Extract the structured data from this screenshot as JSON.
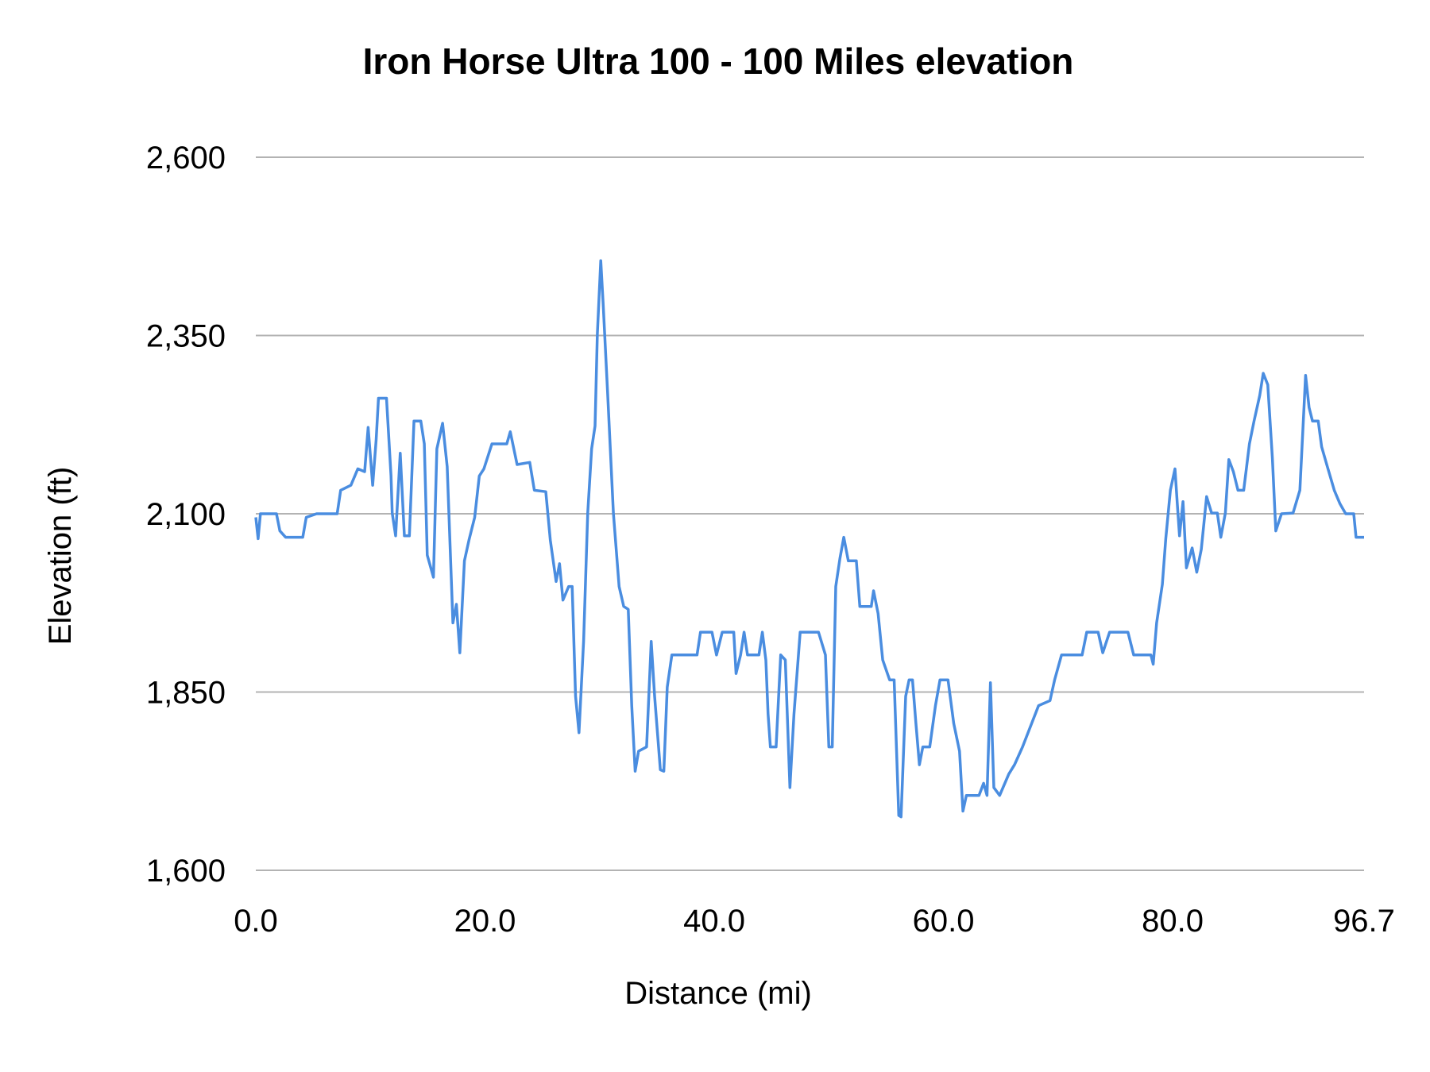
{
  "chart_data": {
    "type": "line",
    "title": "Iron Horse Ultra 100 - 100 Miles elevation",
    "xlabel": "Distance (mi)",
    "ylabel": "Elevation (ft)",
    "xlim": [
      0,
      96.7
    ],
    "ylim": [
      1600,
      2600
    ],
    "x_ticks": [
      "0.0",
      "20.0",
      "40.0",
      "60.0",
      "80.0",
      "96.7"
    ],
    "x_tick_values": [
      0,
      20,
      40,
      60,
      80,
      96.7
    ],
    "y_ticks": [
      "2,600",
      "2,350",
      "2,100",
      "1,850",
      "1,600"
    ],
    "y_tick_values": [
      2600,
      2350,
      2100,
      1850,
      1600
    ],
    "grid": "horizontal",
    "legend": "none",
    "line_color": "#4a8de0",
    "grid_color": "#b3b3b3",
    "series": [
      {
        "points": [
          [
            0,
            2095
          ],
          [
            0.2,
            2065
          ],
          [
            0.4,
            2100
          ],
          [
            1.8,
            2100
          ],
          [
            2.1,
            2076
          ],
          [
            2.6,
            2067
          ],
          [
            4.1,
            2067
          ],
          [
            4.4,
            2095
          ],
          [
            5.3,
            2100
          ],
          [
            7.1,
            2100
          ],
          [
            7.4,
            2133
          ],
          [
            8.3,
            2140
          ],
          [
            8.9,
            2163
          ],
          [
            9.5,
            2159
          ],
          [
            9.8,
            2221
          ],
          [
            10.2,
            2140
          ],
          [
            10.5,
            2204
          ],
          [
            10.7,
            2262
          ],
          [
            11.4,
            2262
          ],
          [
            11.8,
            2153
          ],
          [
            11.9,
            2101
          ],
          [
            12.2,
            2069
          ],
          [
            12.6,
            2185
          ],
          [
            12.96,
            2069
          ],
          [
            13.4,
            2069
          ],
          [
            13.8,
            2230
          ],
          [
            14.4,
            2230
          ],
          [
            14.7,
            2198
          ],
          [
            14.96,
            2042
          ],
          [
            15.5,
            2011
          ],
          [
            15.8,
            2191
          ],
          [
            16.3,
            2227
          ],
          [
            16.7,
            2166
          ],
          [
            17.2,
            1947
          ],
          [
            17.5,
            1973
          ],
          [
            17.8,
            1905
          ],
          [
            18.2,
            2034
          ],
          [
            18.6,
            2063
          ],
          [
            19.1,
            2095
          ],
          [
            19.5,
            2153
          ],
          [
            19.9,
            2163
          ],
          [
            20.6,
            2198
          ],
          [
            21.9,
            2198
          ],
          [
            22.2,
            2215
          ],
          [
            22.8,
            2169
          ],
          [
            23.9,
            2172
          ],
          [
            24.3,
            2133
          ],
          [
            25.3,
            2131
          ],
          [
            25.7,
            2063
          ],
          [
            26.2,
            2005
          ],
          [
            26.5,
            2030
          ],
          [
            26.8,
            1979
          ],
          [
            27.3,
            1998
          ],
          [
            27.6,
            1998
          ],
          [
            27.9,
            1844
          ],
          [
            28.2,
            1793
          ],
          [
            28.6,
            1921
          ],
          [
            28.96,
            2101
          ],
          [
            29.3,
            2191
          ],
          [
            29.6,
            2223
          ],
          [
            29.8,
            2352
          ],
          [
            30.1,
            2455
          ],
          [
            30.3,
            2397
          ],
          [
            30.7,
            2268
          ],
          [
            31.2,
            2101
          ],
          [
            31.7,
            1998
          ],
          [
            32.1,
            1970
          ],
          [
            32.5,
            1966
          ],
          [
            32.8,
            1831
          ],
          [
            33.1,
            1739
          ],
          [
            33.4,
            1767
          ],
          [
            34.1,
            1773
          ],
          [
            34.5,
            1921
          ],
          [
            34.8,
            1844
          ],
          [
            35.3,
            1741
          ],
          [
            35.6,
            1739
          ],
          [
            35.9,
            1857
          ],
          [
            36.3,
            1902
          ],
          [
            38.5,
            1902
          ],
          [
            38.8,
            1934
          ],
          [
            39.8,
            1934
          ],
          [
            40.2,
            1902
          ],
          [
            40.7,
            1934
          ],
          [
            41.7,
            1934
          ],
          [
            41.9,
            1876
          ],
          [
            42.3,
            1902
          ],
          [
            42.6,
            1934
          ],
          [
            42.9,
            1902
          ],
          [
            43.9,
            1902
          ],
          [
            44.2,
            1934
          ],
          [
            44.5,
            1895
          ],
          [
            44.7,
            1819
          ],
          [
            44.9,
            1773
          ],
          [
            45.4,
            1773
          ],
          [
            45.8,
            1902
          ],
          [
            46.2,
            1895
          ],
          [
            46.6,
            1716
          ],
          [
            46.96,
            1819
          ],
          [
            47.5,
            1934
          ],
          [
            49.1,
            1934
          ],
          [
            49.7,
            1902
          ],
          [
            50.0,
            1773
          ],
          [
            50.3,
            1773
          ],
          [
            50.6,
            1998
          ],
          [
            50.96,
            2037
          ],
          [
            51.3,
            2067
          ],
          [
            51.7,
            2034
          ],
          [
            52.4,
            2034
          ],
          [
            52.7,
            1970
          ],
          [
            53.7,
            1970
          ],
          [
            53.9,
            1992
          ],
          [
            54.3,
            1960
          ],
          [
            54.7,
            1895
          ],
          [
            55.3,
            1867
          ],
          [
            55.7,
            1867
          ],
          [
            56.1,
            1677
          ],
          [
            56.3,
            1675
          ],
          [
            56.7,
            1844
          ],
          [
            57.0,
            1867
          ],
          [
            57.3,
            1867
          ],
          [
            57.6,
            1806
          ],
          [
            57.9,
            1748
          ],
          [
            58.2,
            1773
          ],
          [
            58.8,
            1773
          ],
          [
            59.3,
            1831
          ],
          [
            59.7,
            1867
          ],
          [
            60.4,
            1867
          ],
          [
            60.9,
            1806
          ],
          [
            61.4,
            1767
          ],
          [
            61.7,
            1683
          ],
          [
            62.0,
            1705
          ],
          [
            63.1,
            1705
          ],
          [
            63.5,
            1722
          ],
          [
            63.8,
            1705
          ],
          [
            64.1,
            1863
          ],
          [
            64.4,
            1716
          ],
          [
            64.9,
            1705
          ],
          [
            65.7,
            1735
          ],
          [
            66.2,
            1748
          ],
          [
            66.9,
            1773
          ],
          [
            67.7,
            1806
          ],
          [
            68.3,
            1831
          ],
          [
            69.3,
            1838
          ],
          [
            69.7,
            1867
          ],
          [
            70.3,
            1902
          ],
          [
            72.1,
            1902
          ],
          [
            72.5,
            1934
          ],
          [
            73.5,
            1934
          ],
          [
            73.9,
            1905
          ],
          [
            74.5,
            1934
          ],
          [
            76.1,
            1934
          ],
          [
            76.6,
            1902
          ],
          [
            78.1,
            1902
          ],
          [
            78.3,
            1889
          ],
          [
            78.6,
            1947
          ],
          [
            79.1,
            2001
          ],
          [
            79.4,
            2065
          ],
          [
            79.8,
            2133
          ],
          [
            80.2,
            2163
          ],
          [
            80.4,
            2114
          ],
          [
            80.6,
            2069
          ],
          [
            80.9,
            2117
          ],
          [
            81.2,
            2024
          ],
          [
            81.7,
            2052
          ],
          [
            82.1,
            2018
          ],
          [
            82.5,
            2050
          ],
          [
            82.96,
            2124
          ],
          [
            83.4,
            2101
          ],
          [
            83.9,
            2101
          ],
          [
            84.2,
            2067
          ],
          [
            84.6,
            2101
          ],
          [
            84.9,
            2176
          ],
          [
            85.3,
            2159
          ],
          [
            85.7,
            2133
          ],
          [
            86.2,
            2133
          ],
          [
            86.7,
            2198
          ],
          [
            87.1,
            2230
          ],
          [
            87.6,
            2266
          ],
          [
            87.9,
            2297
          ],
          [
            88.3,
            2281
          ],
          [
            88.7,
            2178
          ],
          [
            89.0,
            2076
          ],
          [
            89.5,
            2100
          ],
          [
            90.5,
            2101
          ],
          [
            91.1,
            2133
          ],
          [
            91.6,
            2294
          ],
          [
            91.9,
            2249
          ],
          [
            92.2,
            2230
          ],
          [
            92.7,
            2230
          ],
          [
            93.0,
            2194
          ],
          [
            93.5,
            2166
          ],
          [
            94.1,
            2133
          ],
          [
            94.6,
            2114
          ],
          [
            95.1,
            2100
          ],
          [
            95.8,
            2100
          ],
          [
            96.0,
            2067
          ],
          [
            96.7,
            2067
          ]
        ]
      }
    ]
  }
}
